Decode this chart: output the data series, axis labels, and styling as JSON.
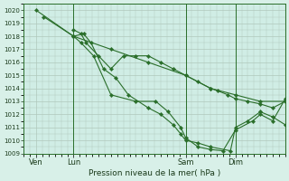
{
  "xlabel": "Pression niveau de la mer( hPa )",
  "bg_color": "#d8f0e8",
  "plot_bg_color": "#d0ede5",
  "grid_color": "#b0c8bc",
  "line_color": "#2a6e2a",
  "marker_color": "#2a6e2a",
  "ylim": [
    1009,
    1020.5
  ],
  "yticks": [
    1009,
    1010,
    1011,
    1012,
    1013,
    1014,
    1015,
    1016,
    1017,
    1018,
    1019,
    1020
  ],
  "xtick_labels": [
    "Ven",
    "Lun",
    "Sam",
    "Dim"
  ],
  "xtick_positions": [
    0.0,
    1.5,
    6.0,
    8.0
  ],
  "xlim": [
    -0.5,
    10.0
  ],
  "vlines": [
    1.5,
    6.0,
    8.0
  ],
  "series": [
    {
      "x": [
        0.0,
        1.5,
        3.0,
        4.5,
        6.0,
        7.0,
        8.0,
        9.0,
        10.0
      ],
      "y": [
        1020.0,
        1018.0,
        1017.0,
        1016.0,
        1015.0,
        1014.0,
        1013.5,
        1013.0,
        1013.0
      ]
    },
    {
      "x": [
        0.3,
        1.5,
        1.8,
        2.3,
        3.0,
        4.0,
        4.8,
        5.3,
        5.8,
        6.0,
        6.5,
        7.0,
        7.5,
        8.0,
        8.7,
        9.0,
        9.5,
        10.0
      ],
      "y": [
        1019.5,
        1018.0,
        1017.5,
        1016.5,
        1013.5,
        1013.0,
        1013.0,
        1012.2,
        1011.0,
        1010.2,
        1009.5,
        1009.3,
        1009.2,
        1010.8,
        1011.5,
        1012.0,
        1011.5,
        1013.2
      ]
    },
    {
      "x": [
        1.5,
        1.9,
        2.2,
        2.7,
        3.2,
        3.7,
        4.5,
        5.0,
        5.5,
        5.8,
        6.0,
        6.5,
        7.0,
        7.8,
        8.0,
        8.5,
        9.0,
        9.5,
        10.0
      ],
      "y": [
        1018.0,
        1018.2,
        1017.5,
        1015.5,
        1014.8,
        1013.5,
        1012.5,
        1012.0,
        1011.2,
        1010.5,
        1010.0,
        1009.8,
        1009.5,
        1009.2,
        1011.0,
        1011.5,
        1012.2,
        1011.8,
        1011.2
      ]
    },
    {
      "x": [
        1.5,
        1.8,
        2.0,
        2.5,
        3.0,
        3.5,
        4.0,
        4.5,
        5.0,
        5.5,
        6.0,
        6.5,
        7.0,
        7.3,
        7.7,
        8.0,
        8.5,
        9.0,
        9.5,
        10.0
      ],
      "y": [
        1018.5,
        1018.2,
        1017.5,
        1016.5,
        1015.5,
        1016.5,
        1016.5,
        1016.5,
        1016.0,
        1015.5,
        1015.0,
        1014.5,
        1014.0,
        1013.8,
        1013.5,
        1013.2,
        1013.0,
        1012.8,
        1012.5,
        1013.0
      ]
    }
  ]
}
